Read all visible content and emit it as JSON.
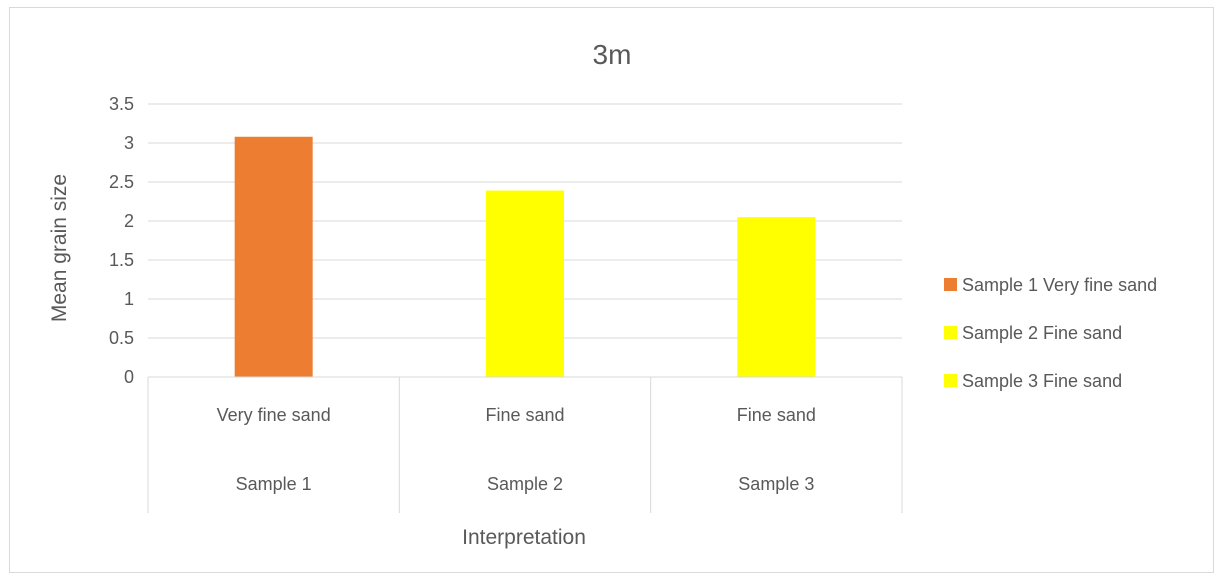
{
  "chart_data": {
    "type": "bar",
    "title": "3m",
    "xlabel": "Interpretation",
    "ylabel": "Mean grain size",
    "ylim": [
      0,
      3.5
    ],
    "y_ticks": [
      "0",
      "0.5",
      "1",
      "1.5",
      "2",
      "2.5",
      "3",
      "3.5"
    ],
    "grid": true,
    "legend_position": "right",
    "categories": [
      {
        "inner": "Very fine sand",
        "outer": "Sample 1"
      },
      {
        "inner": "Fine sand",
        "outer": "Sample 2"
      },
      {
        "inner": "Fine sand",
        "outer": "Sample 3"
      }
    ],
    "series": [
      {
        "name": "Sample 1 Very fine sand",
        "color": "#ed7d31",
        "values": [
          3.08,
          null,
          null
        ]
      },
      {
        "name": "Sample 2 Fine sand",
        "color": "#ffff00",
        "values": [
          null,
          2.39,
          null
        ]
      },
      {
        "name": "Sample 3 Fine sand",
        "color": "#ffff00",
        "values": [
          null,
          null,
          2.05
        ]
      }
    ]
  }
}
